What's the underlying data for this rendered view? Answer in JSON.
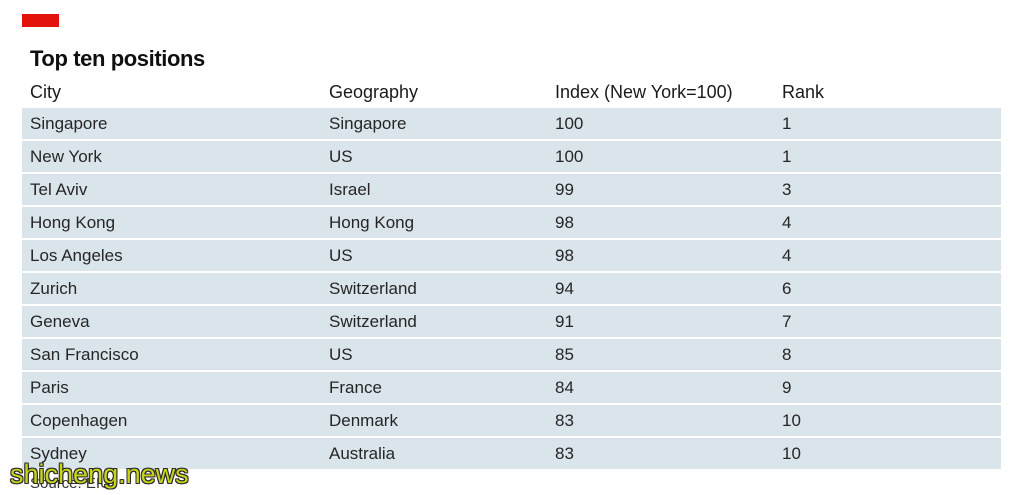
{
  "colors": {
    "accent": "#e3120b",
    "row_background": "#d9e4eb",
    "watermark": "#c8d41c"
  },
  "chart_data": {
    "type": "table",
    "title": "Top ten positions",
    "columns": [
      "City",
      "Geography",
      "Index (New York=100)",
      "Rank"
    ],
    "rows": [
      [
        "Singapore",
        "Singapore",
        100,
        1
      ],
      [
        "New York",
        "US",
        100,
        1
      ],
      [
        "Tel Aviv",
        "Israel",
        99,
        3
      ],
      [
        "Hong Kong",
        "Hong Kong",
        98,
        4
      ],
      [
        "Los Angeles",
        "US",
        98,
        4
      ],
      [
        "Zurich",
        "Switzerland",
        94,
        6
      ],
      [
        "Geneva",
        "Switzerland",
        91,
        7
      ],
      [
        "San Francisco",
        "US",
        85,
        8
      ],
      [
        "Paris",
        "France",
        84,
        9
      ],
      [
        "Copenhagen",
        "Denmark",
        83,
        10
      ],
      [
        "Sydney",
        "Australia",
        83,
        10
      ]
    ],
    "source": "Source: EIU."
  },
  "watermark": {
    "text": "shicheng.news"
  }
}
